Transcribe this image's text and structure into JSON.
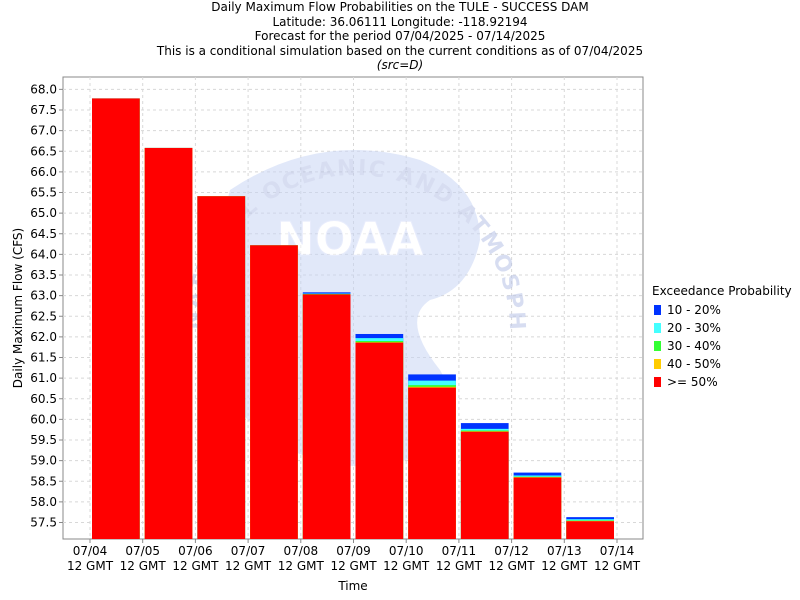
{
  "header": {
    "title_lines": [
      "Daily Maximum Flow Probabilities on the TULE - SUCCESS DAM",
      "Latitude: 36.06111 Longitude: -118.92194",
      "Forecast for the period 07/04/2025 - 07/14/2025",
      "This is a conditional simulation based on the current conditions as of 07/04/2025"
    ],
    "source_note": "(src=D)"
  },
  "watermark": {
    "logo_text": "NOAA",
    "ring_text": "NATIONAL OCEANIC AND ATMOSPHERIC ADMINISTRATION"
  },
  "legend": {
    "title": "Exceedance Probability",
    "items": [
      {
        "label": "10 - 20%",
        "color": "#0033ff"
      },
      {
        "label": "20 - 30%",
        "color": "#44ffff"
      },
      {
        "label": "30 - 40%",
        "color": "#33ff33"
      },
      {
        "label": "40 - 50%",
        "color": "#ffcc00"
      },
      {
        "label": ">= 50%",
        "color": "#ff0000"
      }
    ]
  },
  "chart_data": {
    "type": "bar",
    "xlabel": "Time",
    "ylabel": "Daily Maximum Flow (CFS)",
    "ylim": [
      57.1,
      68.3
    ],
    "yticks": [
      57.5,
      58.0,
      58.5,
      59.0,
      59.5,
      60.0,
      60.5,
      61.0,
      61.5,
      62.0,
      62.5,
      63.0,
      63.5,
      64.0,
      64.5,
      65.0,
      65.5,
      66.0,
      66.5,
      67.0,
      67.5,
      68.0
    ],
    "x_tick_labels": [
      [
        "07/04",
        "12 GMT"
      ],
      [
        "07/05",
        "12 GMT"
      ],
      [
        "07/06",
        "12 GMT"
      ],
      [
        "07/07",
        "12 GMT"
      ],
      [
        "07/08",
        "12 GMT"
      ],
      [
        "07/09",
        "12 GMT"
      ],
      [
        "07/10",
        "12 GMT"
      ],
      [
        "07/11",
        "12 GMT"
      ],
      [
        "07/12",
        "12 GMT"
      ],
      [
        "07/13",
        "12 GMT"
      ],
      [
        "07/14",
        "12 GMT"
      ]
    ],
    "grid": true,
    "stacked": true,
    "bars": [
      {
        "date": "07/04",
        "ge50": 67.78,
        "p40_50": 67.78,
        "p30_40": 67.78,
        "p20_30": 67.78,
        "p10_20": 67.78
      },
      {
        "date": "07/05",
        "ge50": 66.58,
        "p40_50": 66.58,
        "p30_40": 66.58,
        "p20_30": 66.58,
        "p10_20": 66.58
      },
      {
        "date": "07/06",
        "ge50": 65.41,
        "p40_50": 65.41,
        "p30_40": 65.41,
        "p20_30": 65.41,
        "p10_20": 65.41
      },
      {
        "date": "07/07",
        "ge50": 64.22,
        "p40_50": 64.22,
        "p30_40": 64.22,
        "p20_30": 64.22,
        "p10_20": 64.22
      },
      {
        "date": "07/08",
        "ge50": 63.03,
        "p40_50": 63.03,
        "p30_40": 63.04,
        "p20_30": 63.05,
        "p10_20": 63.08
      },
      {
        "date": "07/09",
        "ge50": 61.86,
        "p40_50": 61.87,
        "p30_40": 61.9,
        "p20_30": 61.97,
        "p10_20": 62.07
      },
      {
        "date": "07/10",
        "ge50": 60.77,
        "p40_50": 60.79,
        "p30_40": 60.83,
        "p20_30": 60.94,
        "p10_20": 61.09
      },
      {
        "date": "07/11",
        "ge50": 59.7,
        "p40_50": 59.71,
        "p30_40": 59.73,
        "p20_30": 59.77,
        "p10_20": 59.91
      },
      {
        "date": "07/12",
        "ge50": 58.59,
        "p40_50": 58.6,
        "p30_40": 58.61,
        "p20_30": 58.64,
        "p10_20": 58.71
      },
      {
        "date": "07/13",
        "ge50": 57.53,
        "p40_50": 57.54,
        "p30_40": 57.55,
        "p20_30": 57.58,
        "p10_20": 57.63
      }
    ]
  }
}
